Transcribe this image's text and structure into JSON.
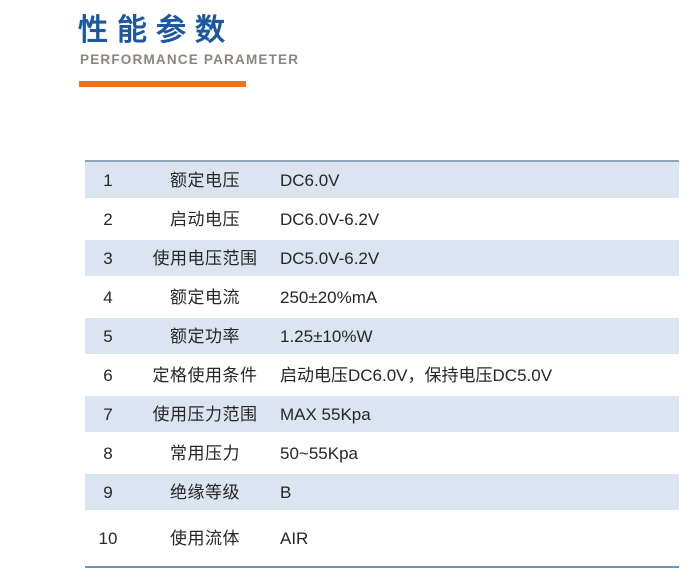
{
  "header": {
    "title": "性能参数",
    "subtitle": "PERFORMANCE PARAMETER"
  },
  "colors": {
    "title_blue": "#1d579d",
    "subtitle_gray": "#8a857f",
    "accent_orange": "#ee7320",
    "row_blue": "#dbe5f1",
    "table_top_border": "#8da3b8",
    "table_bottom_border": "#6b93c0",
    "text": "#262626"
  },
  "table": {
    "rows": [
      {
        "no": "1",
        "name": "额定电压",
        "value": "DC6.0V"
      },
      {
        "no": "2",
        "name": "启动电压",
        "value": "DC6.0V-6.2V"
      },
      {
        "no": "3",
        "name": "使用电压范围",
        "value": "DC5.0V-6.2V"
      },
      {
        "no": "4",
        "name": "额定电流",
        "value": "250±20%mA"
      },
      {
        "no": "5",
        "name": "额定功率",
        "value": "1.25±10%W"
      },
      {
        "no": "6",
        "name": "定格使用条件",
        "value": "启动电压DC6.0V，保持电压DC5.0V"
      },
      {
        "no": "7",
        "name": "使用压力范围",
        "value": "MAX 55Kpa"
      },
      {
        "no": "8",
        "name": "常用压力",
        "value": "50~55Kpa"
      },
      {
        "no": "9",
        "name": "绝缘等级",
        "value": "B"
      },
      {
        "no": "10",
        "name": "使用流体",
        "value": "AIR"
      }
    ]
  }
}
